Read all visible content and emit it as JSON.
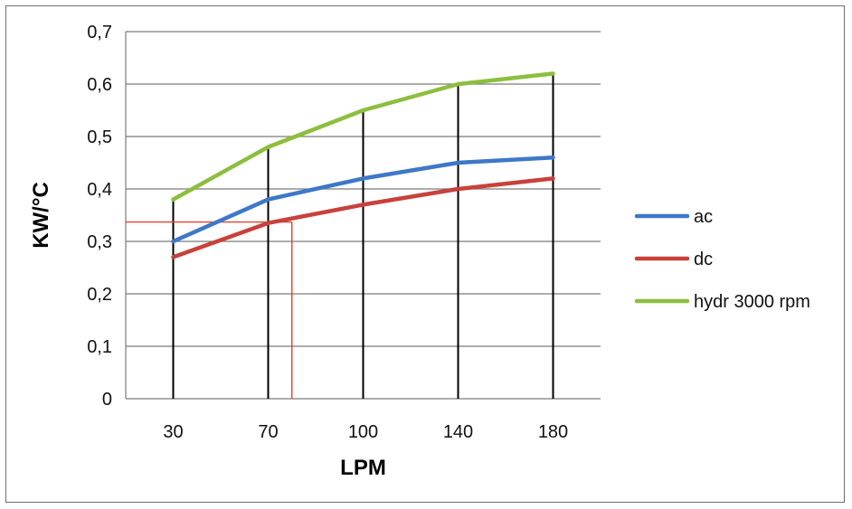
{
  "colors": {
    "ac": "#3d78c8",
    "dc": "#c8413b",
    "hydr": "#8dbe3e",
    "annotation": "#e3402c"
  },
  "chart_data": {
    "type": "line",
    "title": "",
    "xlabel": "LPM",
    "ylabel": "KW/°C",
    "categories": [
      "30",
      "70",
      "100",
      "140",
      "180"
    ],
    "ylim": [
      0,
      0.7
    ],
    "yticks": [
      0,
      0.1,
      0.2,
      0.3,
      0.4,
      0.5,
      0.6,
      0.7
    ],
    "ytick_labels": [
      "0",
      "0,1",
      "0,2",
      "0,3",
      "0,4",
      "0,5",
      "0,6",
      "0,7"
    ],
    "grid": true,
    "legend": "right",
    "series": [
      {
        "name": "ac",
        "color": "#3d78c8",
        "values": [
          0.3,
          0.38,
          0.42,
          0.45,
          0.46
        ]
      },
      {
        "name": "dc",
        "color": "#c8413b",
        "values": [
          0.27,
          0.335,
          0.37,
          0.4,
          0.42
        ]
      },
      {
        "name": "hydr 3000 rpm",
        "color": "#8dbe3e",
        "values": [
          0.38,
          0.48,
          0.55,
          0.6,
          0.62
        ]
      }
    ],
    "annotation": {
      "x_position_category": 1.25,
      "y_value": 0.337,
      "color": "#e3402c"
    }
  }
}
